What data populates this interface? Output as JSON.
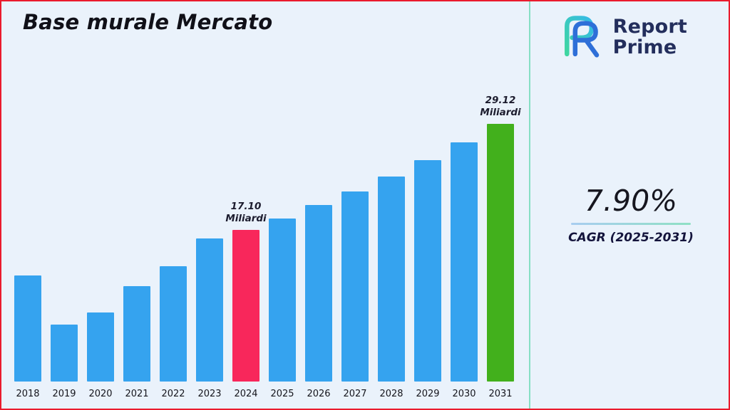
{
  "page": {
    "title": "Base murale Mercato"
  },
  "logo": {
    "line1": "Report",
    "line2": "Prime"
  },
  "stats": {
    "cagr_value": "7.90%",
    "cagr_label": "CAGR (2025-2031)"
  },
  "colors": {
    "background": "#EAF2FB",
    "frame_border": "#EA1B2D",
    "divider": "#86DFC4",
    "bar_blue": "#35A3EF",
    "bar_pink": "#F8275B",
    "bar_green": "#42B01C",
    "logo_navy": "#232E5C",
    "underline_start": "#A8CDF0",
    "underline_end": "#8FE0C4"
  },
  "chart_data": {
    "type": "bar",
    "title": "Base murale Mercato",
    "unit": "Miliardi",
    "xlabel": "",
    "ylabel": "",
    "ylim": [
      0,
      30
    ],
    "grid": false,
    "legend": "none",
    "categories": [
      "2018",
      "2019",
      "2020",
      "2021",
      "2022",
      "2023",
      "2024",
      "2025",
      "2026",
      "2027",
      "2028",
      "2029",
      "2030",
      "2031"
    ],
    "values": [
      12.0,
      6.4,
      7.8,
      10.8,
      13.0,
      16.2,
      17.1,
      18.45,
      19.91,
      21.48,
      23.18,
      25.01,
      26.99,
      29.12
    ],
    "series_colors": {
      "default": "#35A3EF",
      "highlights": {
        "2024": "#F8275B",
        "2031": "#42B01C"
      }
    },
    "annotations": {
      "2024": [
        "17.10",
        "Miliardi"
      ],
      "2031": [
        "29.12",
        "Miliardi"
      ]
    }
  }
}
